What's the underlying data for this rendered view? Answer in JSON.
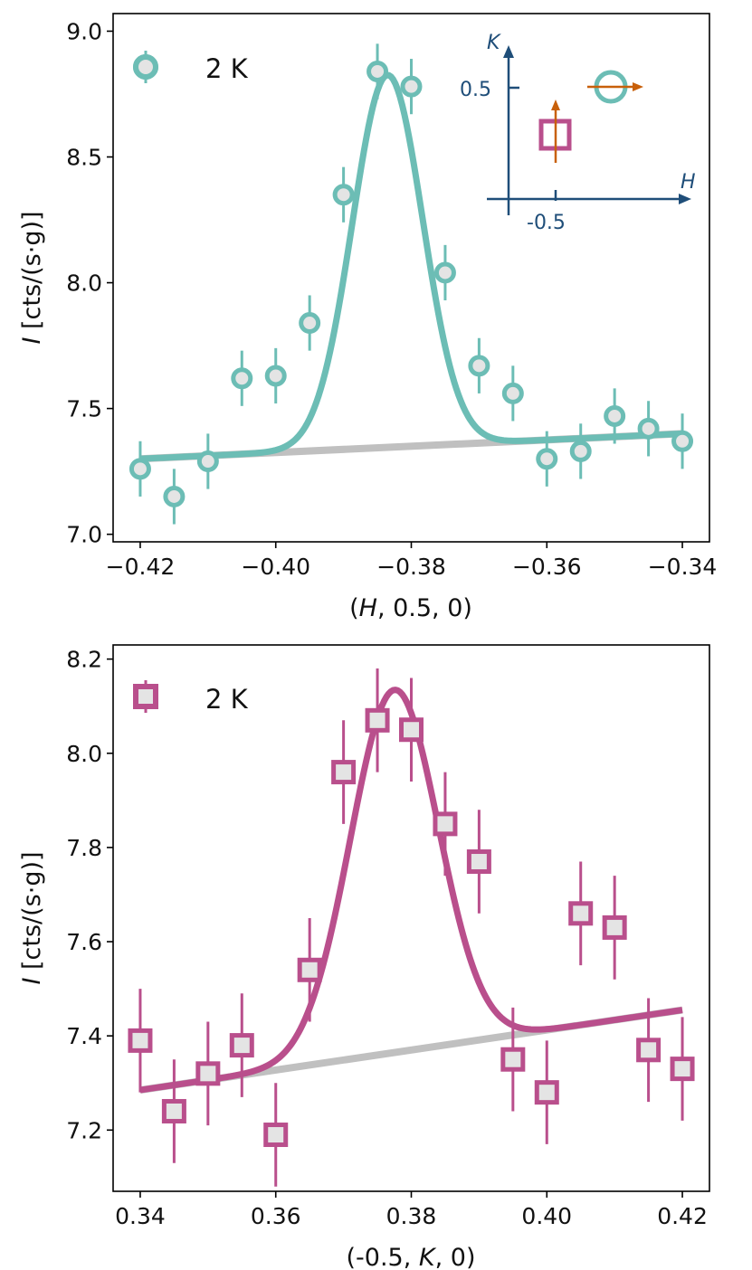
{
  "chart_data": [
    {
      "type": "scatter",
      "xlabel": "(H, 0.5, 0)",
      "ylabel": "I [cts/(s·g)]",
      "xlim": [
        -0.424,
        -0.336
      ],
      "ylim": [
        6.97,
        9.07
      ],
      "xticks": [
        -0.42,
        -0.4,
        -0.38,
        -0.36,
        -0.34
      ],
      "xtick_labels": [
        "−0.42",
        "−0.40",
        "−0.38",
        "−0.36",
        "−0.34"
      ],
      "yticks": [
        7.0,
        7.5,
        8.0,
        8.5,
        9.0
      ],
      "ytick_labels": [
        "7.0",
        "7.5",
        "8.0",
        "8.5",
        "9.0"
      ],
      "legend": "2 K",
      "legend_position": "top-left",
      "marker": "circle",
      "color": "#6cbdb5",
      "background_color": "#c0c0c0",
      "series": [
        {
          "name": "2 K",
          "x": [
            -0.42,
            -0.415,
            -0.41,
            -0.405,
            -0.4,
            -0.395,
            -0.39,
            -0.385,
            -0.38,
            -0.375,
            -0.37,
            -0.365,
            -0.36,
            -0.355,
            -0.35,
            -0.345,
            -0.34
          ],
          "y": [
            7.26,
            7.15,
            7.29,
            7.62,
            7.63,
            7.84,
            8.35,
            8.84,
            8.78,
            8.04,
            7.67,
            7.56,
            7.3,
            7.33,
            7.47,
            7.42,
            7.37
          ],
          "err": [
            0.11,
            0.11,
            0.11,
            0.11,
            0.11,
            0.11,
            0.11,
            0.11,
            0.11,
            0.11,
            0.11,
            0.11,
            0.11,
            0.11,
            0.11,
            0.11,
            0.11
          ]
        }
      ],
      "fit": {
        "center": -0.3835,
        "sigma": 0.0052,
        "amplitude": 1.48,
        "background_start": [
          -0.42,
          7.3
        ],
        "background_end": [
          -0.34,
          7.4
        ]
      },
      "inset": {
        "h_label": "H",
        "k_label": "K",
        "h_tick": "-0.5",
        "k_tick": "0.5",
        "axis_color": "#1f4e79",
        "arrow_color": "#c8600a"
      }
    },
    {
      "type": "scatter",
      "xlabel": "(-0.5, K, 0)",
      "ylabel": "I [cts/(s·g)]",
      "xlim": [
        0.336,
        0.424
      ],
      "ylim": [
        7.07,
        8.23
      ],
      "xticks": [
        0.34,
        0.36,
        0.38,
        0.4,
        0.42
      ],
      "xtick_labels": [
        "0.34",
        "0.36",
        "0.38",
        "0.40",
        "0.42"
      ],
      "yticks": [
        7.2,
        7.4,
        7.6,
        7.8,
        8.0,
        8.2
      ],
      "ytick_labels": [
        "7.2",
        "7.4",
        "7.6",
        "7.8",
        "8.0",
        "8.2"
      ],
      "legend": "2 K",
      "legend_position": "top-left",
      "marker": "square",
      "color": "#b94f8c",
      "background_color": "#c0c0c0",
      "series": [
        {
          "name": "2 K",
          "x": [
            0.34,
            0.345,
            0.35,
            0.355,
            0.36,
            0.365,
            0.37,
            0.375,
            0.38,
            0.385,
            0.39,
            0.395,
            0.4,
            0.405,
            0.41,
            0.415,
            0.42
          ],
          "y": [
            7.39,
            7.24,
            7.32,
            7.38,
            7.19,
            7.54,
            7.96,
            8.07,
            8.05,
            7.85,
            7.77,
            7.35,
            7.28,
            7.66,
            7.63,
            7.37,
            7.33
          ],
          "err": [
            0.11,
            0.11,
            0.11,
            0.11,
            0.11,
            0.11,
            0.11,
            0.11,
            0.11,
            0.11,
            0.11,
            0.11,
            0.11,
            0.11,
            0.11,
            0.11,
            0.11
          ]
        }
      ],
      "fit": {
        "center": 0.3775,
        "sigma": 0.0065,
        "amplitude": 0.77,
        "background_start": [
          0.34,
          7.285
        ],
        "background_end": [
          0.42,
          7.455
        ]
      }
    }
  ]
}
